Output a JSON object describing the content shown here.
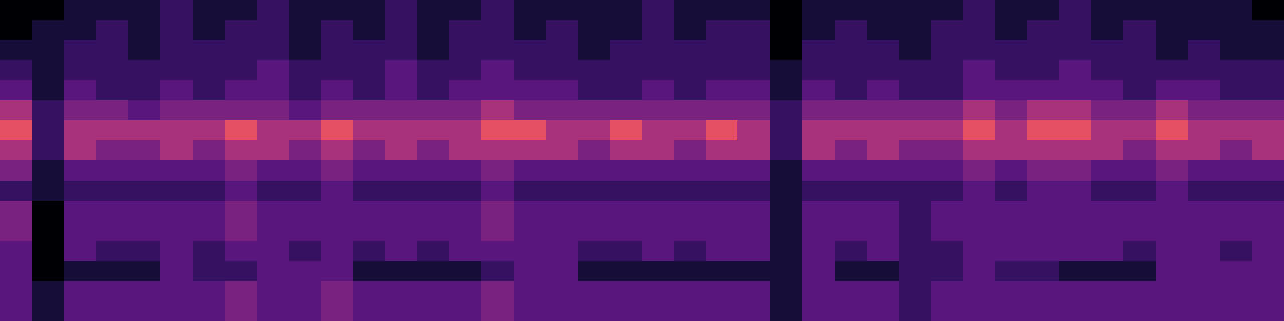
{
  "chart_data": {
    "type": "heatmap",
    "tick_labels": false,
    "cells": [
      [
        1,
        1,
        2,
        2,
        2,
        3,
        2,
        2,
        3,
        2,
        2,
        2,
        3,
        2,
        2,
        3,
        2,
        2,
        2,
        2,
        3,
        2,
        2,
        2,
        1,
        2,
        2,
        2,
        2,
        2,
        3,
        2,
        2,
        3,
        2,
        2,
        2,
        2,
        2,
        1
      ],
      [
        1,
        2,
        2,
        3,
        2,
        3,
        2,
        3,
        3,
        2,
        3,
        2,
        3,
        2,
        3,
        3,
        2,
        3,
        2,
        2,
        3,
        2,
        3,
        3,
        1,
        2,
        3,
        2,
        2,
        3,
        3,
        2,
        3,
        3,
        2,
        3,
        2,
        2,
        2,
        2
      ],
      [
        2,
        2,
        3,
        3,
        2,
        3,
        3,
        3,
        3,
        2,
        3,
        3,
        3,
        2,
        3,
        3,
        3,
        3,
        2,
        3,
        3,
        3,
        3,
        3,
        1,
        3,
        3,
        3,
        2,
        3,
        3,
        3,
        3,
        3,
        3,
        3,
        2,
        3,
        2,
        2
      ],
      [
        3,
        2,
        3,
        3,
        3,
        3,
        3,
        3,
        4,
        3,
        3,
        3,
        4,
        3,
        3,
        4,
        3,
        3,
        3,
        3,
        3,
        3,
        3,
        3,
        2,
        3,
        3,
        3,
        3,
        3,
        4,
        3,
        3,
        4,
        3,
        3,
        3,
        3,
        3,
        3
      ],
      [
        4,
        2,
        4,
        3,
        3,
        4,
        3,
        4,
        4,
        3,
        4,
        3,
        4,
        3,
        4,
        4,
        4,
        4,
        3,
        3,
        4,
        3,
        4,
        4,
        2,
        4,
        3,
        4,
        3,
        3,
        4,
        4,
        4,
        4,
        4,
        3,
        4,
        4,
        3,
        3
      ],
      [
        6,
        3,
        5,
        5,
        4,
        5,
        5,
        5,
        5,
        4,
        5,
        5,
        5,
        5,
        5,
        6,
        5,
        5,
        5,
        5,
        5,
        5,
        5,
        5,
        3,
        5,
        5,
        5,
        5,
        5,
        6,
        5,
        6,
        6,
        5,
        5,
        6,
        5,
        5,
        5
      ],
      [
        7,
        3,
        6,
        6,
        6,
        6,
        6,
        7,
        6,
        6,
        7,
        6,
        6,
        6,
        6,
        7,
        7,
        6,
        6,
        7,
        6,
        6,
        7,
        6,
        3,
        6,
        6,
        6,
        6,
        6,
        7,
        6,
        7,
        7,
        6,
        6,
        7,
        6,
        6,
        6
      ],
      [
        6,
        3,
        6,
        5,
        5,
        6,
        5,
        6,
        6,
        5,
        6,
        5,
        6,
        5,
        6,
        6,
        6,
        6,
        5,
        6,
        6,
        5,
        6,
        6,
        3,
        6,
        5,
        6,
        5,
        5,
        6,
        6,
        6,
        6,
        6,
        5,
        6,
        6,
        5,
        6
      ],
      [
        5,
        2,
        4,
        4,
        4,
        4,
        4,
        5,
        4,
        4,
        5,
        4,
        4,
        4,
        4,
        5,
        4,
        4,
        4,
        4,
        4,
        4,
        4,
        4,
        2,
        4,
        4,
        4,
        4,
        4,
        5,
        4,
        5,
        5,
        4,
        4,
        5,
        4,
        4,
        4
      ],
      [
        3,
        2,
        3,
        3,
        3,
        3,
        3,
        4,
        3,
        3,
        4,
        3,
        3,
        3,
        3,
        4,
        3,
        3,
        3,
        3,
        3,
        3,
        3,
        3,
        2,
        3,
        3,
        3,
        3,
        3,
        4,
        3,
        4,
        4,
        3,
        3,
        4,
        3,
        3,
        3
      ],
      [
        5,
        1,
        4,
        4,
        4,
        4,
        4,
        5,
        4,
        4,
        4,
        4,
        4,
        4,
        4,
        5,
        4,
        4,
        4,
        4,
        4,
        4,
        4,
        4,
        2,
        4,
        4,
        4,
        3,
        4,
        4,
        4,
        4,
        4,
        4,
        4,
        4,
        4,
        4,
        4
      ],
      [
        5,
        1,
        4,
        4,
        4,
        4,
        4,
        5,
        4,
        4,
        4,
        4,
        4,
        4,
        4,
        5,
        4,
        4,
        4,
        4,
        4,
        4,
        4,
        4,
        2,
        4,
        4,
        4,
        3,
        4,
        4,
        4,
        4,
        4,
        4,
        4,
        4,
        4,
        4,
        4
      ],
      [
        4,
        1,
        4,
        3,
        3,
        4,
        3,
        4,
        4,
        3,
        4,
        3,
        4,
        3,
        4,
        4,
        4,
        4,
        3,
        3,
        4,
        3,
        4,
        4,
        2,
        4,
        3,
        4,
        3,
        3,
        4,
        4,
        4,
        4,
        4,
        3,
        4,
        4,
        3,
        4
      ],
      [
        4,
        1,
        2,
        2,
        2,
        4,
        3,
        3,
        4,
        4,
        4,
        2,
        2,
        2,
        2,
        3,
        4,
        4,
        2,
        2,
        2,
        2,
        2,
        2,
        2,
        4,
        2,
        2,
        3,
        3,
        4,
        3,
        3,
        2,
        2,
        2,
        4,
        4,
        4,
        4
      ],
      [
        4,
        2,
        4,
        4,
        4,
        4,
        4,
        5,
        4,
        4,
        5,
        4,
        4,
        4,
        4,
        5,
        4,
        4,
        4,
        4,
        4,
        4,
        4,
        4,
        2,
        4,
        4,
        4,
        3,
        4,
        4,
        4,
        4,
        4,
        4,
        4,
        4,
        4,
        4,
        4
      ],
      [
        4,
        2,
        4,
        4,
        4,
        4,
        4,
        5,
        4,
        4,
        5,
        4,
        4,
        4,
        4,
        5,
        4,
        4,
        4,
        4,
        4,
        4,
        4,
        4,
        2,
        4,
        4,
        4,
        3,
        4,
        4,
        4,
        4,
        4,
        4,
        4,
        4,
        4,
        4,
        4
      ]
    ]
  }
}
